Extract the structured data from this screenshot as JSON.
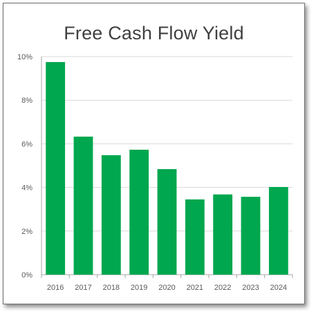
{
  "chart_data": {
    "type": "bar",
    "title": "Free Cash Flow Yield",
    "xlabel": "",
    "ylabel": "",
    "categories": [
      "2016",
      "2017",
      "2018",
      "2019",
      "2020",
      "2021",
      "2022",
      "2023",
      "2024"
    ],
    "values": [
      9.75,
      6.33,
      5.48,
      5.73,
      4.84,
      3.45,
      3.68,
      3.57,
      4.02
    ],
    "value_unit": "%",
    "ylim": [
      0,
      10
    ],
    "yticks": [
      0,
      2,
      4,
      6,
      8,
      10
    ],
    "ytick_labels": [
      "0%",
      "2%",
      "4%",
      "6%",
      "8%",
      "10%"
    ],
    "bar_color": "#00a74f",
    "grid": "horizontal",
    "legend": "none"
  }
}
